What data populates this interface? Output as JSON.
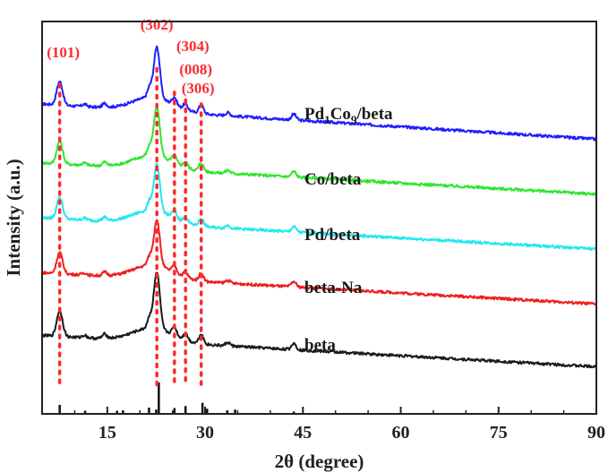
{
  "chart_data": {
    "type": "line",
    "xlabel": "2θ (degree)",
    "ylabel": "Intensity (a.u.)",
    "xlim": [
      5,
      90
    ],
    "ylim": [
      0,
      100
    ],
    "x_ticks": [
      15,
      30,
      45,
      60,
      75,
      90
    ],
    "x_tick_labels": [
      "15",
      "30",
      "45",
      "60",
      "75",
      "90"
    ],
    "grid": false,
    "colors": {
      "Pd1Co9/beta": "#1f1fff",
      "Co/beta": "#2ee62e",
      "Pd/beta": "#22e8ee",
      "beta-Na": "#ee1f1f",
      "beta": "#1a1a1a",
      "peak_marker": "#ff2a2a",
      "reference": "#111111"
    },
    "series": [
      {
        "name": "Pd1Co9/beta",
        "label_main": "Pd",
        "label_sub1": "1",
        "label_mid": "Co",
        "label_sub2": "9",
        "label_tail": "/beta",
        "baseline_start": 79,
        "baseline_end": 70,
        "peak_scale": 1.0
      },
      {
        "name": "Co/beta",
        "label_main": "Co/beta",
        "baseline_start": 64,
        "baseline_end": 56,
        "peak_scale": 0.95
      },
      {
        "name": "Pd/beta",
        "label_main": "Pd/beta",
        "baseline_start": 50,
        "baseline_end": 42,
        "peak_scale": 0.9
      },
      {
        "name": "beta-Na",
        "label_main": "beta-Na",
        "baseline_start": 36,
        "baseline_end": 28,
        "peak_scale": 0.9
      },
      {
        "name": "beta",
        "label_main": "beta",
        "baseline_start": 20,
        "baseline_end": 12,
        "peak_scale": 1.1
      }
    ],
    "peaks": [
      {
        "x": 7.7,
        "height": 6
      },
      {
        "x": 11.5,
        "height": 0.6
      },
      {
        "x": 14.6,
        "height": 1.0
      },
      {
        "x": 21.5,
        "height": 2.5
      },
      {
        "x": 22.6,
        "height": 13
      },
      {
        "x": 25.3,
        "height": 2.0
      },
      {
        "x": 27.0,
        "height": 1.5
      },
      {
        "x": 29.4,
        "height": 2.2
      },
      {
        "x": 33.5,
        "height": 0.8
      },
      {
        "x": 43.6,
        "height": 1.5
      }
    ],
    "peak_annotations": [
      {
        "label": "(101)",
        "x": 7.7
      },
      {
        "label": "(302)",
        "x": 22.6
      },
      {
        "label": "(304)",
        "x": 25.3
      },
      {
        "label": "(008)",
        "x": 27.0
      },
      {
        "label": "(306)",
        "x": 29.4
      }
    ],
    "reference_pattern": [
      {
        "x": 7.7,
        "value": 2.3
      },
      {
        "x": 11.6,
        "value": 0.8
      },
      {
        "x": 16.5,
        "value": 0.8
      },
      {
        "x": 17.4,
        "value": 0.9
      },
      {
        "x": 21.4,
        "value": 1.6
      },
      {
        "x": 22.5,
        "value": 1.1
      },
      {
        "x": 22.9,
        "value": 8.0
      },
      {
        "x": 25.3,
        "value": 1.5
      },
      {
        "x": 27.0,
        "value": 2.0
      },
      {
        "x": 29.6,
        "value": 2.8
      },
      {
        "x": 30.3,
        "value": 1.3
      },
      {
        "x": 33.4,
        "value": 0.9
      },
      {
        "x": 34.6,
        "value": 1.1
      },
      {
        "x": 43.6,
        "value": 0.6
      }
    ]
  }
}
